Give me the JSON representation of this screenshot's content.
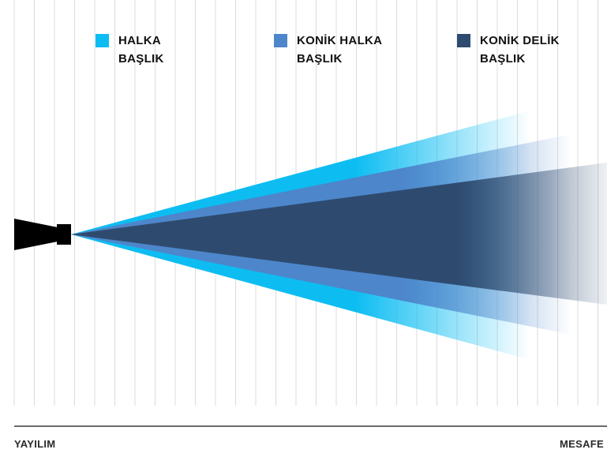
{
  "legend": {
    "items": [
      {
        "key": "halka",
        "line1": "HALKA",
        "line2": "BAŞLIK",
        "color": "#0dbdf2"
      },
      {
        "key": "konik_halka",
        "line1": "KONİK HALKA",
        "line2": "BAŞLIK",
        "color": "#4d86cb"
      },
      {
        "key": "konik_delik",
        "line1": "KONİK DELİK",
        "line2": "BAŞLIK",
        "color": "#2e4b6f"
      }
    ]
  },
  "axis": {
    "left_label": "YAYILIM",
    "right_label": "MESAFE"
  },
  "colors": {
    "gridline": "#dcdcdc",
    "axis_line": "#3a3a3a",
    "nozzle": "#000000"
  },
  "icons": {
    "nozzle": "nozzle-icon"
  }
}
